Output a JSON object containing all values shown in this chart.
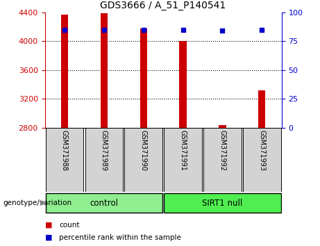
{
  "title": "GDS3666 / A_51_P140541",
  "samples": [
    "GSM371988",
    "GSM371989",
    "GSM371990",
    "GSM371991",
    "GSM371992",
    "GSM371993"
  ],
  "counts": [
    4370,
    4385,
    4175,
    4000,
    2840,
    3320
  ],
  "percentile_ranks": [
    85,
    85,
    85,
    85,
    84,
    85
  ],
  "ylim_left": [
    2800,
    4400
  ],
  "ylim_right": [
    0,
    100
  ],
  "yticks_left": [
    2800,
    3200,
    3600,
    4000,
    4400
  ],
  "yticks_right": [
    0,
    25,
    50,
    75,
    100
  ],
  "bar_color": "#cc0000",
  "dot_color": "#0000cc",
  "groups": [
    {
      "label": "control",
      "indices": [
        0,
        1,
        2
      ],
      "color": "#90ee90"
    },
    {
      "label": "SIRT1 null",
      "indices": [
        3,
        4,
        5
      ],
      "color": "#50ee50"
    }
  ],
  "group_label": "genotype/variation",
  "legend_count_label": "count",
  "legend_percentile_label": "percentile rank within the sample",
  "grid_color": "#000000",
  "axis_left_color": "#cc0000",
  "axis_right_color": "#0000cc",
  "bg_color": "#ffffff",
  "xticklabel_bg": "#d3d3d3",
  "bar_width": 0.18
}
